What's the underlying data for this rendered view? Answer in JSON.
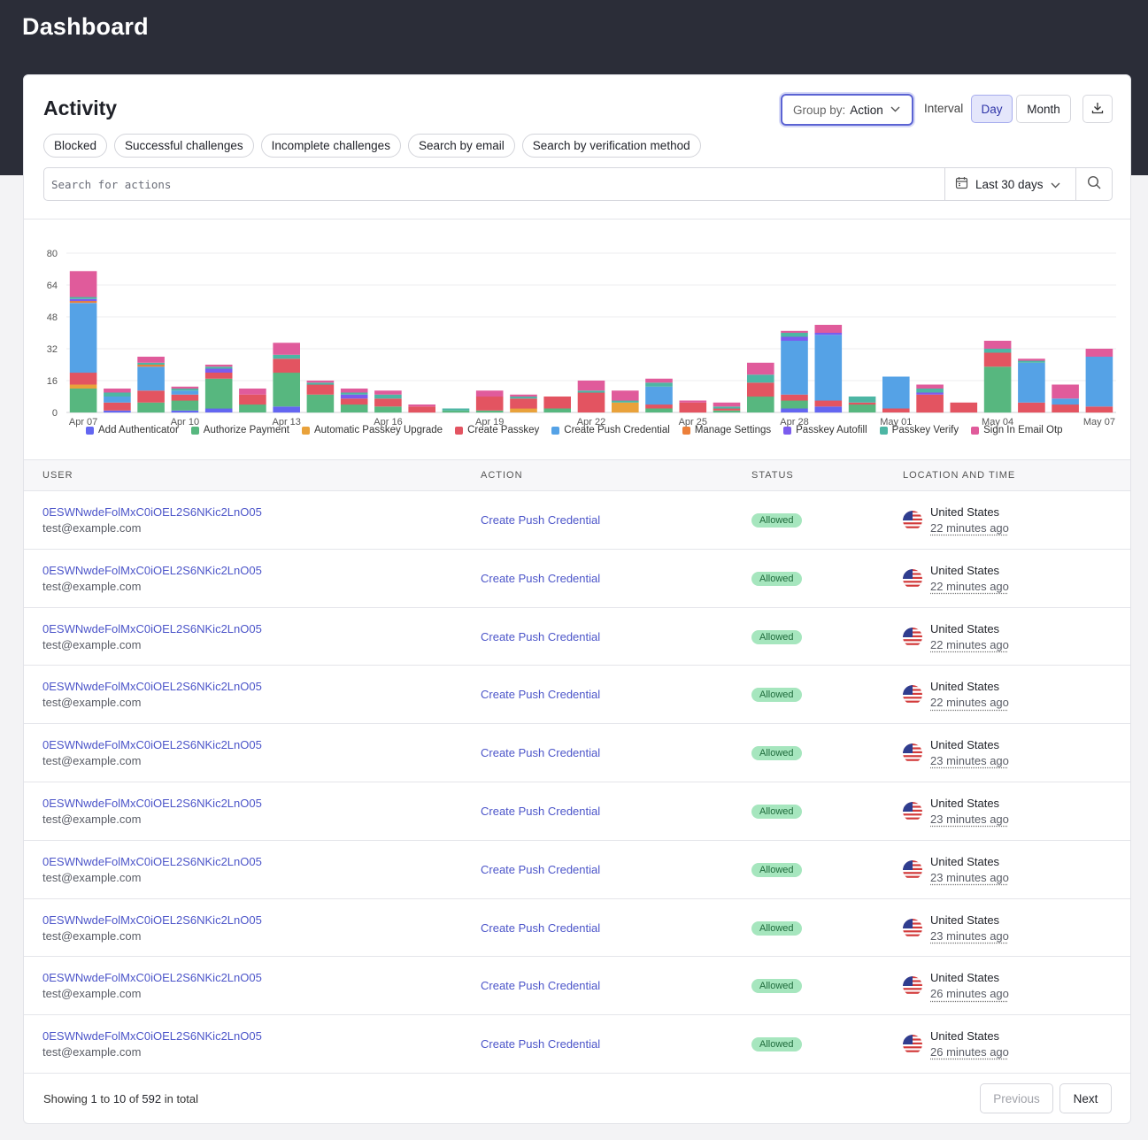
{
  "page": {
    "title": "Dashboard"
  },
  "activity": {
    "title": "Activity",
    "group_by_label": "Group by:",
    "group_by_value": "Action",
    "interval_label": "Interval",
    "interval_day": "Day",
    "interval_month": "Month",
    "filters": [
      "Blocked",
      "Successful challenges",
      "Incomplete challenges",
      "Search by email",
      "Search by verification method"
    ],
    "search_placeholder": "Search for actions",
    "date_range": "Last 30 days"
  },
  "chart_data": {
    "type": "bar",
    "stacked": true,
    "ylim": [
      0,
      80
    ],
    "yticks": [
      0,
      16,
      32,
      48,
      64,
      80
    ],
    "categories": [
      "Apr 07",
      "Apr 08",
      "Apr 09",
      "Apr 10",
      "Apr 11",
      "Apr 12",
      "Apr 13",
      "Apr 14",
      "Apr 15",
      "Apr 16",
      "Apr 17",
      "Apr 18",
      "Apr 19",
      "Apr 20",
      "Apr 21",
      "Apr 22",
      "Apr 23",
      "Apr 24",
      "Apr 25",
      "Apr 26",
      "Apr 27",
      "Apr 28",
      "Apr 29",
      "Apr 30",
      "May 01",
      "May 02",
      "May 03",
      "May 04",
      "May 05",
      "May 06",
      "May 07"
    ],
    "tick_labels": [
      "Apr 07",
      "Apr 10",
      "Apr 13",
      "Apr 16",
      "Apr 19",
      "Apr 22",
      "Apr 25",
      "Apr 28",
      "May 01",
      "May 04",
      "May 07"
    ],
    "legend_position": "bottom",
    "series": [
      {
        "name": "Add Authenticator",
        "color": "#6366f1",
        "values": [
          0,
          1,
          0,
          1,
          2,
          0,
          3,
          0,
          0,
          0,
          0,
          0,
          0,
          0,
          0,
          0,
          0,
          0,
          0,
          0,
          0,
          2,
          3,
          0,
          0,
          0,
          0,
          0,
          0,
          0,
          0
        ]
      },
      {
        "name": "Authorize Payment",
        "color": "#57b77f",
        "values": [
          12,
          0,
          5,
          5,
          15,
          4,
          17,
          9,
          4,
          3,
          0,
          1,
          1,
          0,
          2,
          0,
          0,
          2,
          0,
          1,
          8,
          4,
          0,
          4,
          0,
          0,
          0,
          23,
          0,
          0,
          0
        ]
      },
      {
        "name": "Automatic Passkey Upgrade",
        "color": "#e9a23b",
        "values": [
          2,
          0,
          0,
          0,
          0,
          0,
          0,
          0,
          0,
          0,
          0,
          0,
          0,
          2,
          0,
          0,
          5,
          0,
          0,
          0,
          0,
          0,
          0,
          0,
          0,
          0,
          0,
          0,
          0,
          0,
          0
        ]
      },
      {
        "name": "Create Passkey",
        "color": "#e35461",
        "values": [
          6,
          4,
          6,
          3,
          3,
          5,
          7,
          5,
          3,
          4,
          3,
          0,
          7,
          5,
          6,
          10,
          0,
          2,
          5,
          1,
          7,
          3,
          3,
          1,
          2,
          9,
          5,
          7,
          5,
          4,
          3
        ]
      },
      {
        "name": "Create Push Credential",
        "color": "#55a2e6",
        "values": [
          35,
          3,
          12,
          2,
          0,
          0,
          0,
          0,
          0,
          0,
          0,
          0,
          0,
          0,
          0,
          0,
          0,
          9,
          0,
          0,
          0,
          27,
          33,
          0,
          16,
          0,
          0,
          0,
          20,
          3,
          25
        ]
      },
      {
        "name": "Manage Settings",
        "color": "#ec7f3a",
        "values": [
          1,
          0,
          1,
          0,
          0,
          0,
          0,
          0,
          0,
          0,
          0,
          0,
          0,
          0,
          0,
          0,
          0,
          0,
          0,
          0,
          0,
          0,
          0,
          0,
          0,
          0,
          0,
          0,
          0,
          0,
          0
        ]
      },
      {
        "name": "Passkey Autofill",
        "color": "#7b5cee",
        "values": [
          1,
          0,
          0,
          0,
          2,
          0,
          0,
          0,
          2,
          0,
          0,
          0,
          0,
          0,
          0,
          0,
          0,
          0,
          0,
          0,
          0,
          2,
          1,
          0,
          0,
          1,
          0,
          0,
          0,
          0,
          0
        ]
      },
      {
        "name": "Passkey Verify",
        "color": "#4db6a4",
        "values": [
          1,
          2,
          1,
          1,
          1,
          0,
          2,
          1,
          1,
          2,
          0,
          1,
          0,
          1,
          0,
          1,
          1,
          2,
          0,
          1,
          4,
          2,
          0,
          3,
          0,
          2,
          0,
          2,
          1,
          0,
          0
        ]
      },
      {
        "name": "Sign In Email Otp",
        "color": "#e05b9b",
        "values": [
          13,
          2,
          3,
          1,
          1,
          3,
          6,
          1,
          2,
          2,
          1,
          0,
          3,
          1,
          0,
          5,
          5,
          2,
          1,
          2,
          6,
          1,
          4,
          0,
          0,
          2,
          0,
          4,
          1,
          7,
          4
        ]
      }
    ]
  },
  "table": {
    "headers": {
      "user": "USER",
      "action": "ACTION",
      "status": "STATUS",
      "location": "LOCATION AND TIME"
    },
    "rows": [
      {
        "user_id": "0ESWNwdeFolMxC0iOEL2S6NKic2LnO05",
        "email": "test@example.com",
        "action": "Create Push Credential",
        "status": "Allowed",
        "country": "United States",
        "time": "22 minutes ago"
      },
      {
        "user_id": "0ESWNwdeFolMxC0iOEL2S6NKic2LnO05",
        "email": "test@example.com",
        "action": "Create Push Credential",
        "status": "Allowed",
        "country": "United States",
        "time": "22 minutes ago"
      },
      {
        "user_id": "0ESWNwdeFolMxC0iOEL2S6NKic2LnO05",
        "email": "test@example.com",
        "action": "Create Push Credential",
        "status": "Allowed",
        "country": "United States",
        "time": "22 minutes ago"
      },
      {
        "user_id": "0ESWNwdeFolMxC0iOEL2S6NKic2LnO05",
        "email": "test@example.com",
        "action": "Create Push Credential",
        "status": "Allowed",
        "country": "United States",
        "time": "22 minutes ago"
      },
      {
        "user_id": "0ESWNwdeFolMxC0iOEL2S6NKic2LnO05",
        "email": "test@example.com",
        "action": "Create Push Credential",
        "status": "Allowed",
        "country": "United States",
        "time": "23 minutes ago"
      },
      {
        "user_id": "0ESWNwdeFolMxC0iOEL2S6NKic2LnO05",
        "email": "test@example.com",
        "action": "Create Push Credential",
        "status": "Allowed",
        "country": "United States",
        "time": "23 minutes ago"
      },
      {
        "user_id": "0ESWNwdeFolMxC0iOEL2S6NKic2LnO05",
        "email": "test@example.com",
        "action": "Create Push Credential",
        "status": "Allowed",
        "country": "United States",
        "time": "23 minutes ago"
      },
      {
        "user_id": "0ESWNwdeFolMxC0iOEL2S6NKic2LnO05",
        "email": "test@example.com",
        "action": "Create Push Credential",
        "status": "Allowed",
        "country": "United States",
        "time": "23 minutes ago"
      },
      {
        "user_id": "0ESWNwdeFolMxC0iOEL2S6NKic2LnO05",
        "email": "test@example.com",
        "action": "Create Push Credential",
        "status": "Allowed",
        "country": "United States",
        "time": "26 minutes ago"
      },
      {
        "user_id": "0ESWNwdeFolMxC0iOEL2S6NKic2LnO05",
        "email": "test@example.com",
        "action": "Create Push Credential",
        "status": "Allowed",
        "country": "United States",
        "time": "26 minutes ago"
      }
    ]
  },
  "pagination": {
    "showing_prefix": "Showing",
    "from": "1",
    "to_word": "to",
    "to": "10",
    "of_word": "of",
    "total": "592",
    "suffix": "in total",
    "previous": "Previous",
    "next": "Next"
  },
  "icons": {
    "chevron": "chevron-down-icon",
    "download": "download-icon",
    "calendar": "calendar-icon",
    "search": "search-icon",
    "flag": "us-flag-icon"
  }
}
